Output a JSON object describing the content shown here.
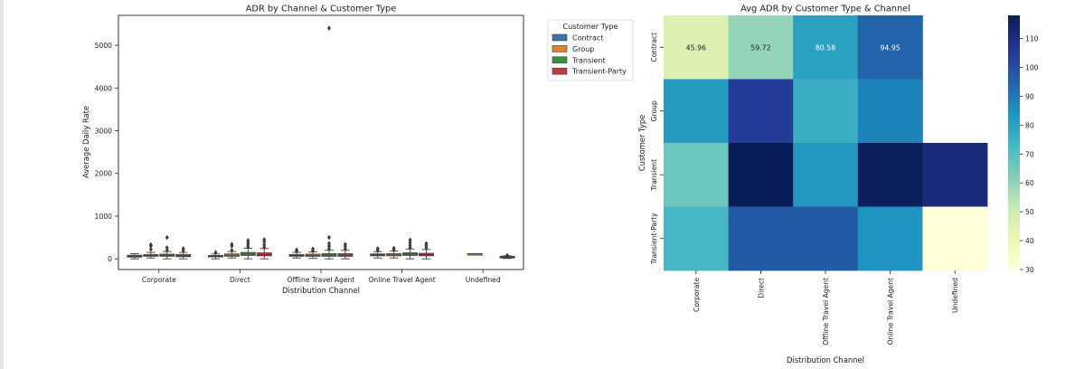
{
  "chart_data": [
    {
      "type": "box",
      "title": "ADR by Channel & Customer Type",
      "xlabel": "Distribution Channel",
      "ylabel": "Average Daily Rate",
      "ylim": [
        -250,
        5700
      ],
      "yticks": [
        0,
        1000,
        2000,
        3000,
        4000,
        5000
      ],
      "categories": [
        "Corporate",
        "Direct",
        "Offline Travel Agent",
        "Online Travel Agent",
        "Undefined"
      ],
      "legend": {
        "title": "Customer Type",
        "placement": "outside-right",
        "entries": [
          "Contract",
          "Group",
          "Transient",
          "Transient-Party"
        ]
      },
      "series": [
        {
          "name": "Contract",
          "color": "#3a73a8",
          "boxes": [
            {
              "category": "Corporate",
              "q1": 40,
              "median": 60,
              "q3": 85,
              "whisker_low": 0,
              "whisker_high": 120,
              "outliers": []
            },
            {
              "category": "Direct",
              "q1": 45,
              "median": 60,
              "q3": 80,
              "whisker_low": 0,
              "whisker_high": 115,
              "outliers": [
                150
              ]
            },
            {
              "category": "Offline Travel Agent",
              "q1": 60,
              "median": 80,
              "q3": 100,
              "whisker_low": 20,
              "whisker_high": 150,
              "outliers": [
                180,
                210
              ]
            },
            {
              "category": "Online Travel Agent",
              "q1": 70,
              "median": 95,
              "q3": 115,
              "whisker_low": 20,
              "whisker_high": 170,
              "outliers": [
                200,
                240
              ]
            },
            {
              "category": "Undefined",
              "q1": null,
              "median": null,
              "q3": null,
              "whisker_low": null,
              "whisker_high": null,
              "outliers": []
            }
          ]
        },
        {
          "name": "Group",
          "color": "#e1812c",
          "boxes": [
            {
              "category": "Corporate",
              "q1": 60,
              "median": 80,
              "q3": 100,
              "whisker_low": 20,
              "whisker_high": 150,
              "outliers": [
                220,
                300,
                330
              ]
            },
            {
              "category": "Direct",
              "q1": 60,
              "median": 85,
              "q3": 115,
              "whisker_low": 20,
              "whisker_high": 170,
              "outliers": [
                200,
                300,
                340
              ]
            },
            {
              "category": "Offline Travel Agent",
              "q1": 60,
              "median": 80,
              "q3": 110,
              "whisker_low": 10,
              "whisker_high": 160,
              "outliers": [
                190,
                230
              ]
            },
            {
              "category": "Online Travel Agent",
              "q1": 70,
              "median": 95,
              "q3": 120,
              "whisker_low": 20,
              "whisker_high": 180,
              "outliers": [
                210,
                250
              ]
            },
            {
              "category": "Undefined",
              "q1": 120,
              "median": 120,
              "q3": 120,
              "whisker_low": 120,
              "whisker_high": 120,
              "outliers": []
            }
          ]
        },
        {
          "name": "Transient",
          "color": "#3a923a",
          "boxes": [
            {
              "category": "Corporate",
              "q1": 60,
              "median": 80,
              "q3": 110,
              "whisker_low": 0,
              "whisker_high": 170,
              "outliers": [
                200,
                260,
                500
              ]
            },
            {
              "category": "Direct",
              "q1": 80,
              "median": 110,
              "q3": 150,
              "whisker_low": 0,
              "whisker_high": 250,
              "outliers": [
                280,
                330,
                380,
                430
              ]
            },
            {
              "category": "Offline Travel Agent",
              "q1": 60,
              "median": 90,
              "q3": 120,
              "whisker_low": 0,
              "whisker_high": 200,
              "outliers": [
                240,
                300,
                360,
                500,
                5400
              ]
            },
            {
              "category": "Online Travel Agent",
              "q1": 80,
              "median": 110,
              "q3": 140,
              "whisker_low": 0,
              "whisker_high": 230,
              "outliers": [
                260,
                320,
                380,
                440
              ]
            },
            {
              "category": "Undefined",
              "q1": null,
              "median": null,
              "q3": null,
              "whisker_low": null,
              "whisker_high": null,
              "outliers": []
            }
          ]
        },
        {
          "name": "Transient-Party",
          "color": "#c03d3e",
          "boxes": [
            {
              "category": "Corporate",
              "q1": 50,
              "median": 70,
              "q3": 100,
              "whisker_low": 0,
              "whisker_high": 150,
              "outliers": [
                190,
                240
              ]
            },
            {
              "category": "Direct",
              "q1": 70,
              "median": 100,
              "q3": 140,
              "whisker_low": 0,
              "whisker_high": 240,
              "outliers": [
                270,
                330,
                400,
                450
              ]
            },
            {
              "category": "Offline Travel Agent",
              "q1": 60,
              "median": 85,
              "q3": 120,
              "whisker_low": 0,
              "whisker_high": 200,
              "outliers": [
                240,
                290,
                340
              ]
            },
            {
              "category": "Online Travel Agent",
              "q1": 70,
              "median": 100,
              "q3": 130,
              "whisker_low": 0,
              "whisker_high": 220,
              "outliers": [
                260,
                310,
                360
              ]
            },
            {
              "category": "Undefined",
              "q1": 20,
              "median": 40,
              "q3": 60,
              "whisker_low": 10,
              "whisker_high": 70,
              "outliers": [
                80
              ]
            }
          ]
        }
      ]
    },
    {
      "type": "heatmap",
      "title": "Avg ADR by Customer Type & Channel",
      "xlabel": "Distribution Channel",
      "ylabel": "Customer Type",
      "x": [
        "Corporate",
        "Direct",
        "Offline Travel Agent",
        "Online Travel Agent",
        "Undefined"
      ],
      "y": [
        "Contract",
        "Group",
        "Transient",
        "Transient-Party"
      ],
      "values": [
        [
          45.96,
          59.72,
          80.58,
          94.95,
          null
        ],
        [
          82,
          105,
          76,
          88,
          null
        ],
        [
          66,
          118,
          83,
          117,
          112
        ],
        [
          73,
          97,
          97,
          84,
          30
        ]
      ],
      "annotations": [
        [
          "45.96",
          "59.72",
          "80.58",
          "94.95",
          ""
        ],
        [
          "",
          "",
          "",
          "",
          ""
        ],
        [
          "",
          "",
          "",
          "",
          ""
        ],
        [
          "",
          "",
          "",
          "",
          ""
        ]
      ],
      "colormap": "YlGnBu",
      "vmin": 30,
      "vmax": 118,
      "colorbar_ticks": [
        30,
        40,
        50,
        60,
        70,
        80,
        90,
        100,
        110
      ]
    }
  ]
}
